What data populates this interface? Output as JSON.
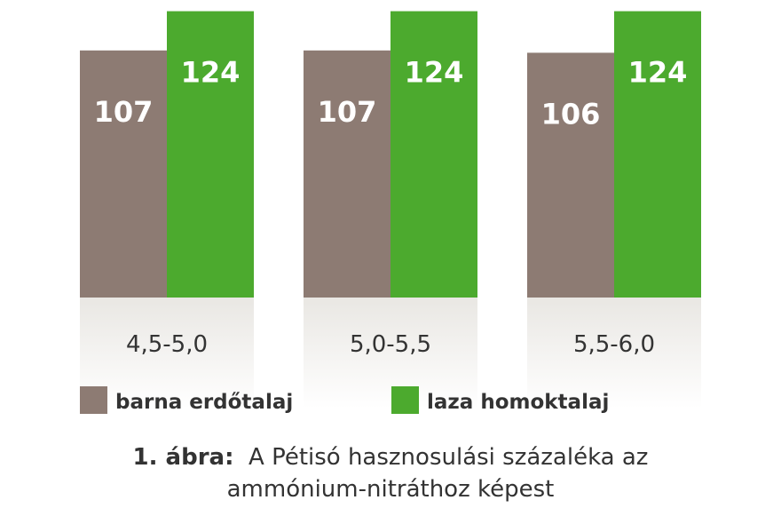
{
  "chart_data": {
    "type": "bar",
    "categories": [
      "4,5-5,0",
      "5,0-5,5",
      "5,5-6,0"
    ],
    "series": [
      {
        "name": "barna erdőtalaj",
        "color": "#8d7b73",
        "values": [
          107,
          107,
          106
        ],
        "value_labels": [
          "107",
          "107",
          "106"
        ]
      },
      {
        "name": "laza homoktalaj",
        "color": "#4caa2e",
        "values": [
          124,
          124,
          124
        ],
        "value_labels": [
          "124",
          "124",
          "124"
        ]
      }
    ],
    "title": "",
    "xlabel": "",
    "ylabel": "",
    "grid": false,
    "legend_position": "bottom"
  },
  "caption": {
    "lead": "1. ábra:",
    "line1": "A Pétisó hasznosulási százaléka az",
    "line2": "ammónium-nitráthoz képest"
  }
}
